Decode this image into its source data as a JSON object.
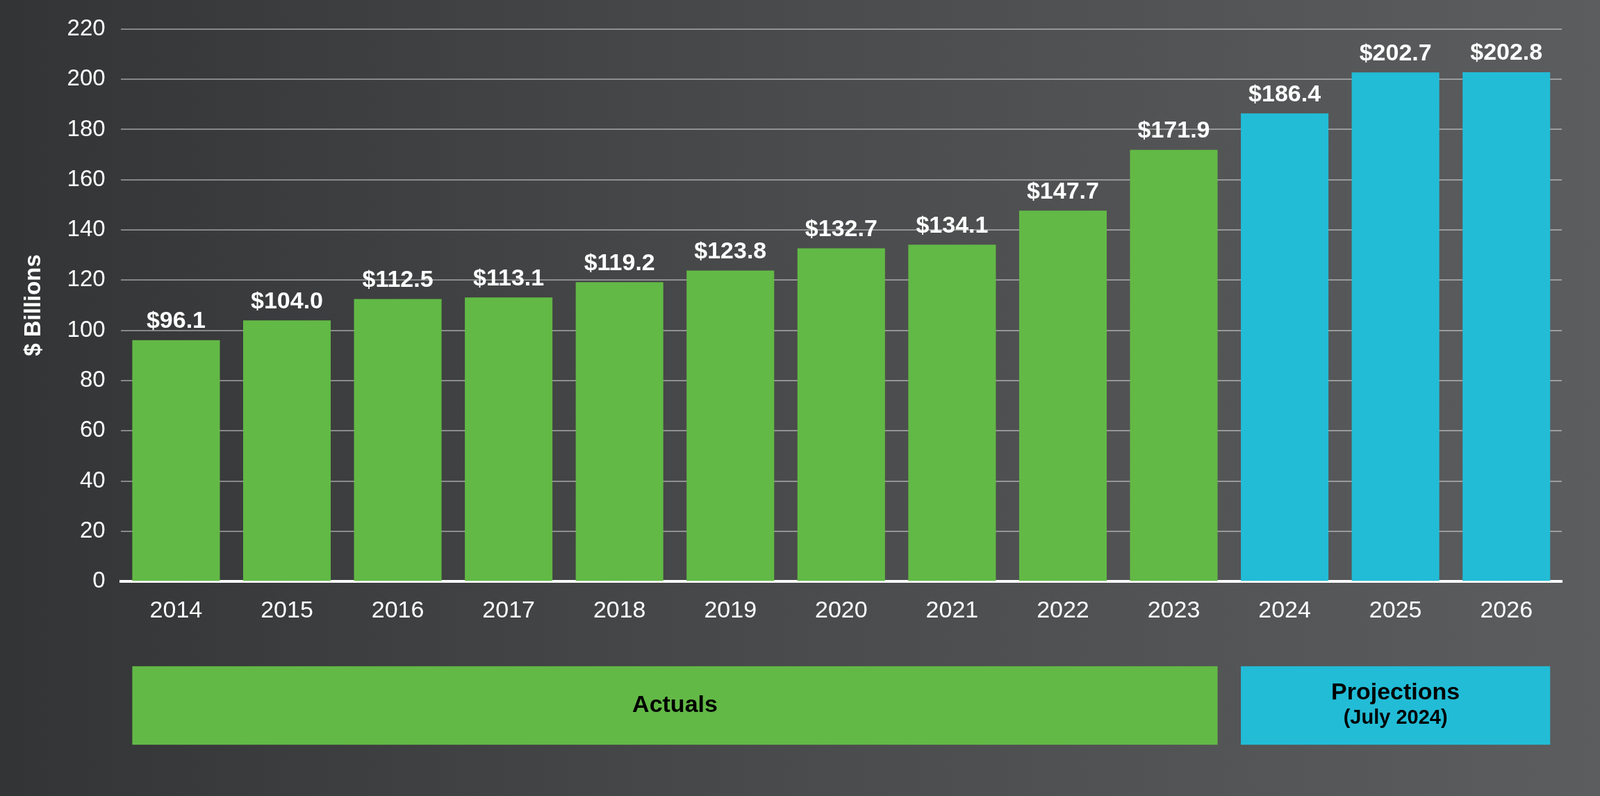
{
  "chart_data": {
    "type": "bar",
    "y_label": "$ Billions",
    "categories": [
      "2014",
      "2015",
      "2016",
      "2017",
      "2018",
      "2019",
      "2020",
      "2021",
      "2022",
      "2023",
      "2024",
      "2025",
      "2026"
    ],
    "values": [
      96.1,
      104.0,
      112.5,
      113.1,
      119.2,
      123.8,
      132.7,
      134.1,
      147.7,
      171.9,
      186.4,
      202.7,
      202.8
    ],
    "value_labels": [
      "$96.1",
      "$104.0",
      "$112.5",
      "$113.1",
      "$119.2",
      "$123.8",
      "$132.7",
      "$134.1",
      "$147.7",
      "$171.9",
      "$186.4",
      "$202.7",
      "$202.8"
    ],
    "colors": [
      "#62b946",
      "#62b946",
      "#62b946",
      "#62b946",
      "#62b946",
      "#62b946",
      "#62b946",
      "#62b946",
      "#62b946",
      "#62b946",
      "#22bcd6",
      "#22bcd6",
      "#22bcd6"
    ],
    "ylim": [
      0,
      220
    ],
    "yticks": [
      0,
      20,
      40,
      60,
      80,
      100,
      120,
      140,
      160,
      180,
      200,
      220
    ],
    "grid": true,
    "data_labels": true,
    "annotations": [
      {
        "text": [
          "Actuals"
        ],
        "from": "2014",
        "to": "2023",
        "color": "#62b946"
      },
      {
        "text": [
          "Projections",
          "(July 2024)"
        ],
        "from": "2024",
        "to": "2026",
        "color": "#22bcd6"
      }
    ]
  }
}
